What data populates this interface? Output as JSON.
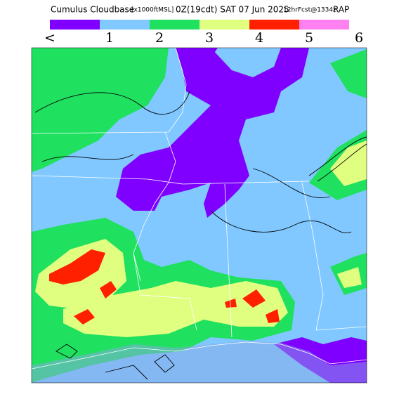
{
  "header": {
    "title": "Cumulus Cloudbase",
    "units": "[x1000ftMSL]",
    "valid": "0Z(19cdt) SAT 07 Jun 2025",
    "forecast": "12hrFcst@1334z",
    "model": "RAP"
  },
  "legend": {
    "colors": [
      "#8000ff",
      "#80c8ff",
      "#20e060",
      "#e0ff80",
      "#ff2000",
      "#ff80f0"
    ],
    "labels": [
      "<",
      "1",
      "2",
      "3",
      "4",
      "5",
      "6"
    ]
  }
}
